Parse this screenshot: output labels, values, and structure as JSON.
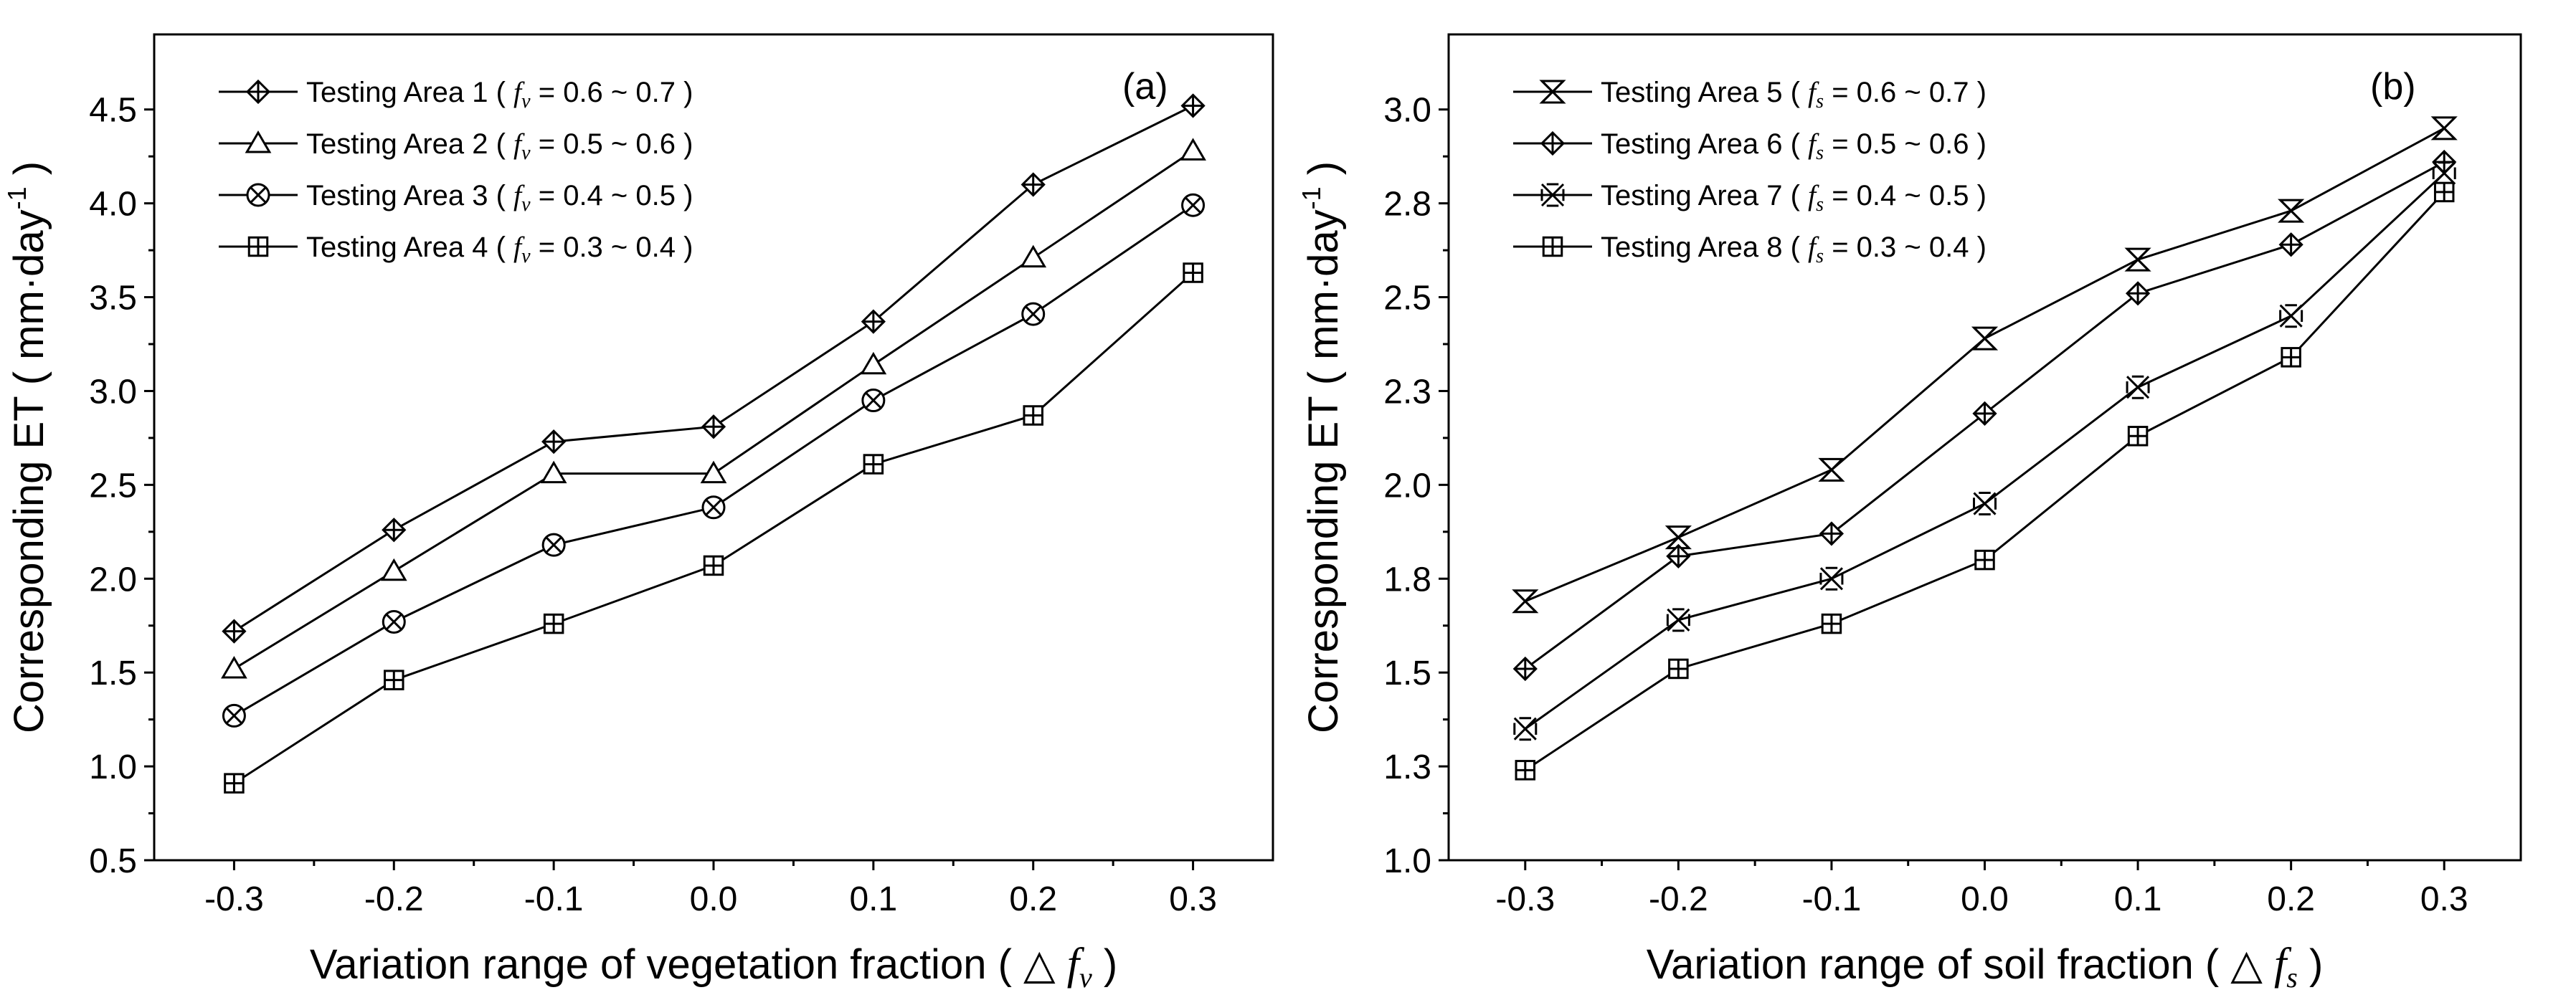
{
  "chart_data": [
    {
      "type": "line",
      "panel_label": "(a)",
      "xlabel": "Variation range of vegetation fraction ( △",
      "xlabel_symbol": "f",
      "xlabel_sub": "v",
      "xlabel_end": ")",
      "ylabel": "Corresponding ET ( mm·day",
      "ylabel_sup": "-1",
      "ylabel_end": " )",
      "xlim": [
        -0.35,
        0.35
      ],
      "ylim": [
        0.5,
        4.9
      ],
      "x": [
        -0.3,
        -0.2,
        -0.1,
        0.0,
        0.1,
        0.2,
        0.3
      ],
      "x_tick_labels": [
        "-0.3",
        "-0.2",
        "-0.1",
        "0.0",
        "0.1",
        "0.2",
        "0.3"
      ],
      "y_ticks": [
        0.5,
        1.0,
        1.5,
        2.0,
        2.5,
        3.0,
        3.5,
        4.0,
        4.5
      ],
      "y_tick_labels": [
        "0.5",
        "1.0",
        "1.5",
        "2.0",
        "2.5",
        "3.0",
        "3.5",
        "4.0",
        "4.5"
      ],
      "legend_position": "top-left",
      "series": [
        {
          "name": "Testing Area 1",
          "symbol": "f",
          "sub": "v",
          "range": " = 0.6 ~ 0.7 )",
          "marker": "diamond-plus",
          "values": [
            1.72,
            2.26,
            2.73,
            2.81,
            3.37,
            4.1,
            4.52
          ]
        },
        {
          "name": "Testing Area 2",
          "symbol": "f",
          "sub": "v",
          "range": " = 0.5 ~ 0.6 )",
          "marker": "triangle",
          "values": [
            1.52,
            2.04,
            2.56,
            2.56,
            3.14,
            3.71,
            4.28
          ]
        },
        {
          "name": "Testing Area 3",
          "symbol": "f",
          "sub": "v",
          "range": " = 0.4 ~ 0.5 )",
          "marker": "circle-x",
          "values": [
            1.27,
            1.77,
            2.18,
            2.38,
            2.95,
            3.41,
            3.99
          ]
        },
        {
          "name": "Testing Area 4",
          "symbol": "f",
          "sub": "v",
          "range": " = 0.3 ~ 0.4 )",
          "marker": "square-plus",
          "values": [
            0.91,
            1.46,
            1.76,
            2.07,
            2.61,
            2.87,
            3.63
          ]
        }
      ]
    },
    {
      "type": "line",
      "panel_label": "(b)",
      "xlabel": "Variation range of soil fraction ( △",
      "xlabel_symbol": "f",
      "xlabel_sub": "s",
      "xlabel_end": ")",
      "ylabel": "Corresponding ET ( mm·day",
      "ylabel_sup": "-1",
      "ylabel_end": " )",
      "xlim": [
        -0.35,
        0.35
      ],
      "ylim": [
        1.0,
        3.2
      ],
      "x": [
        -0.3,
        -0.2,
        -0.1,
        0.0,
        0.1,
        0.2,
        0.3
      ],
      "x_tick_labels": [
        "-0.3",
        "-0.2",
        "-0.1",
        "0.0",
        "0.1",
        "0.2",
        "0.3"
      ],
      "y_ticks": [
        1.0,
        1.25,
        1.5,
        1.75,
        2.0,
        2.25,
        2.5,
        2.75,
        3.0
      ],
      "y_tick_labels": [
        "1.0",
        "1.3",
        "1.5",
        "1.8",
        "2.0",
        "2.3",
        "2.5",
        "2.8",
        "3.0"
      ],
      "legend_position": "top-left",
      "series": [
        {
          "name": "Testing Area 5",
          "symbol": "f",
          "sub": "s",
          "range": " = 0.6 ~ 0.7 )",
          "marker": "hourglass",
          "values": [
            1.69,
            1.86,
            2.04,
            2.39,
            2.6,
            2.73,
            2.95
          ]
        },
        {
          "name": "Testing Area 6",
          "symbol": "f",
          "sub": "s",
          "range": " = 0.5 ~ 0.6 )",
          "marker": "diamond-plus",
          "values": [
            1.51,
            1.81,
            1.87,
            2.19,
            2.51,
            2.64,
            2.86
          ]
        },
        {
          "name": "Testing Area 7",
          "symbol": "f",
          "sub": "s",
          "range": " = 0.4 ~ 0.5 )",
          "marker": "double-x",
          "values": [
            1.35,
            1.64,
            1.75,
            1.95,
            2.26,
            2.45,
            2.83
          ]
        },
        {
          "name": "Testing Area 8",
          "symbol": "f",
          "sub": "s",
          "range": " = 0.3 ~ 0.4 )",
          "marker": "square-plus",
          "values": [
            1.24,
            1.51,
            1.63,
            1.8,
            2.13,
            2.34,
            2.78
          ]
        }
      ]
    }
  ]
}
